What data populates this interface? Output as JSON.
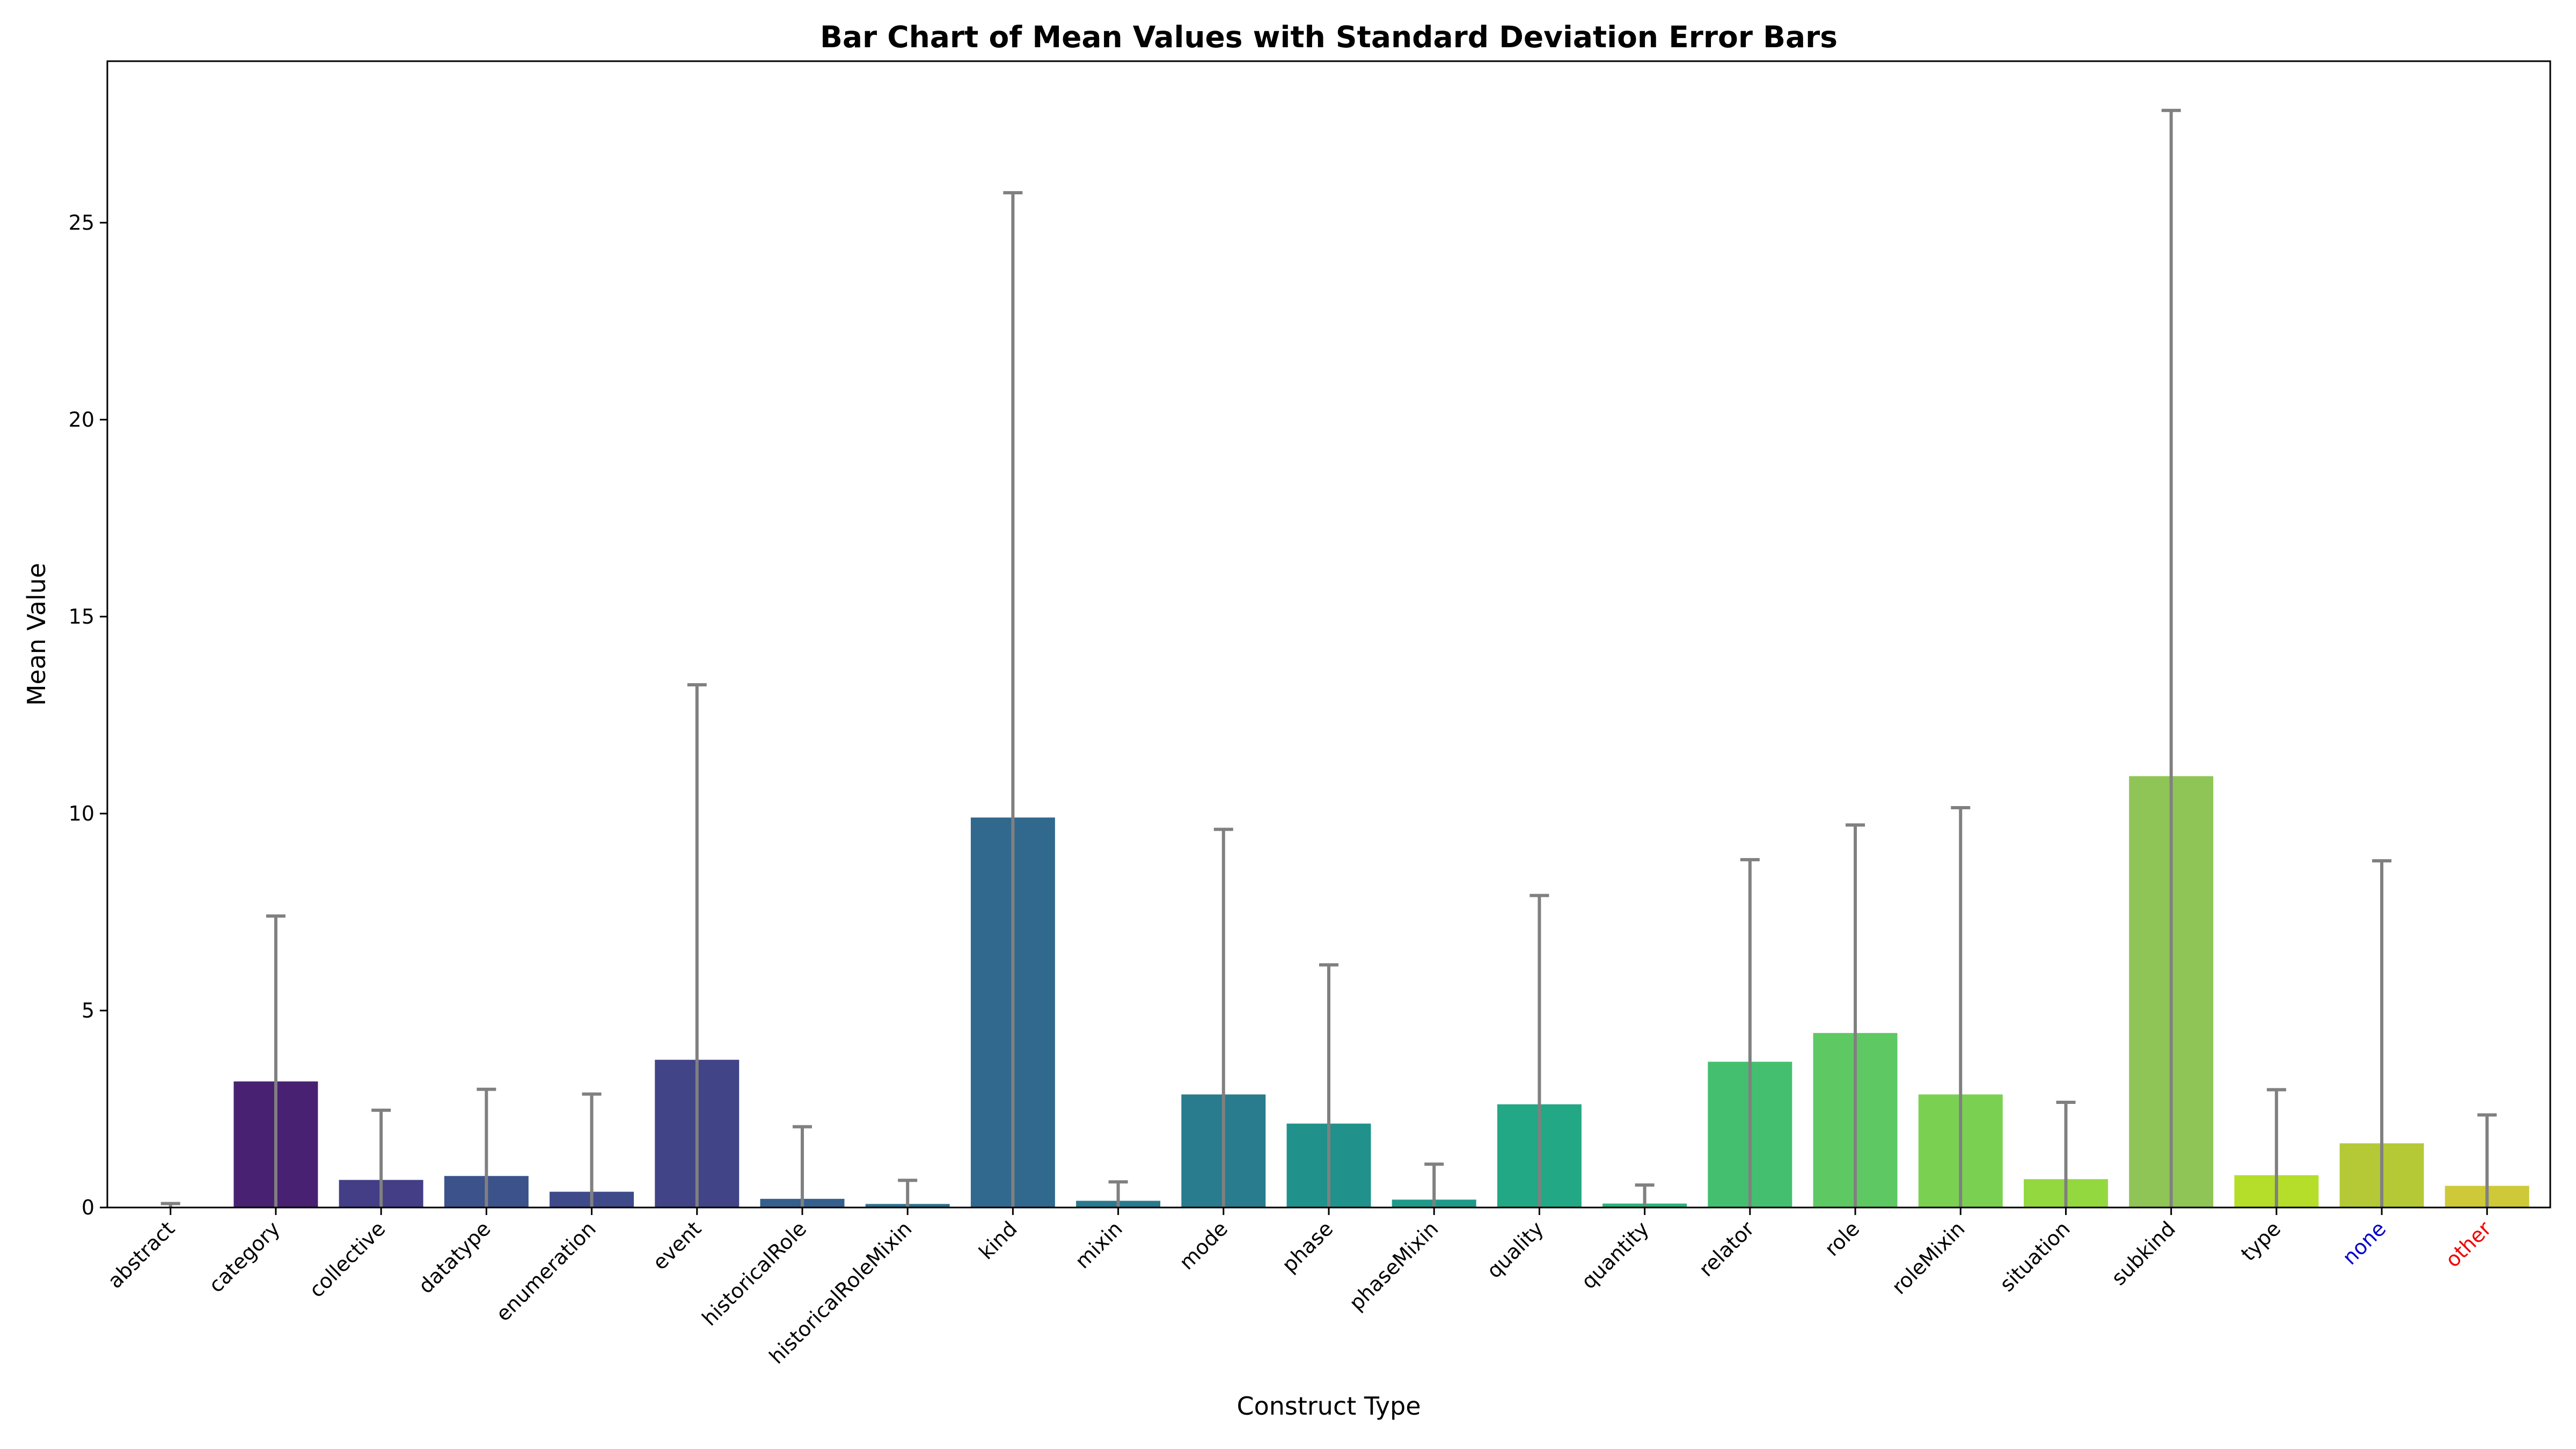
{
  "chart_data": {
    "type": "bar",
    "title": "Bar Chart of Mean Values with Standard Deviation Error Bars",
    "xlabel": "Construct Type",
    "ylabel": "Mean Value",
    "ylim": [
      0,
      29.1
    ],
    "yticks": [
      0,
      5,
      10,
      15,
      20,
      25
    ],
    "grid": false,
    "categories": [
      "abstract",
      "category",
      "collective",
      "datatype",
      "enumeration",
      "event",
      "historicalRole",
      "historicalRoleMixin",
      "kind",
      "mixin",
      "mode",
      "phase",
      "phaseMixin",
      "quality",
      "quantity",
      "relator",
      "role",
      "roleMixin",
      "situation",
      "subkind",
      "type",
      "none",
      "other"
    ],
    "values": [
      0.0,
      3.2,
      0.7,
      0.8,
      0.4,
      3.75,
      0.22,
      0.09,
      9.9,
      0.17,
      2.87,
      2.13,
      0.2,
      2.62,
      0.1,
      3.7,
      4.43,
      2.87,
      0.72,
      10.95,
      0.82,
      1.63,
      0.55
    ],
    "error": [
      0.1,
      4.2,
      1.77,
      2.2,
      2.48,
      9.52,
      1.83,
      0.6,
      15.86,
      0.48,
      6.73,
      4.03,
      0.9,
      5.3,
      0.47,
      5.13,
      5.28,
      7.28,
      1.95,
      16.9,
      2.17,
      7.17,
      1.8
    ],
    "bar_colors": [
      "#440154",
      "#482173",
      "#433E85",
      "#3B528B",
      "#3E4A89",
      "#414487",
      "#355F8D",
      "#2C728E",
      "#31688E",
      "#297A8E",
      "#287C8E",
      "#21918C",
      "#1F9A8A",
      "#22A884",
      "#2DB27D",
      "#44BF70",
      "#5EC962",
      "#7AD151",
      "#94D840",
      "#8FC556",
      "#B5DE2B",
      "#B5C936",
      "#CEC938"
    ],
    "error_color": "#808080",
    "tick_label_colors": {
      "none": "#0000CC",
      "other": "#EE0000"
    }
  }
}
